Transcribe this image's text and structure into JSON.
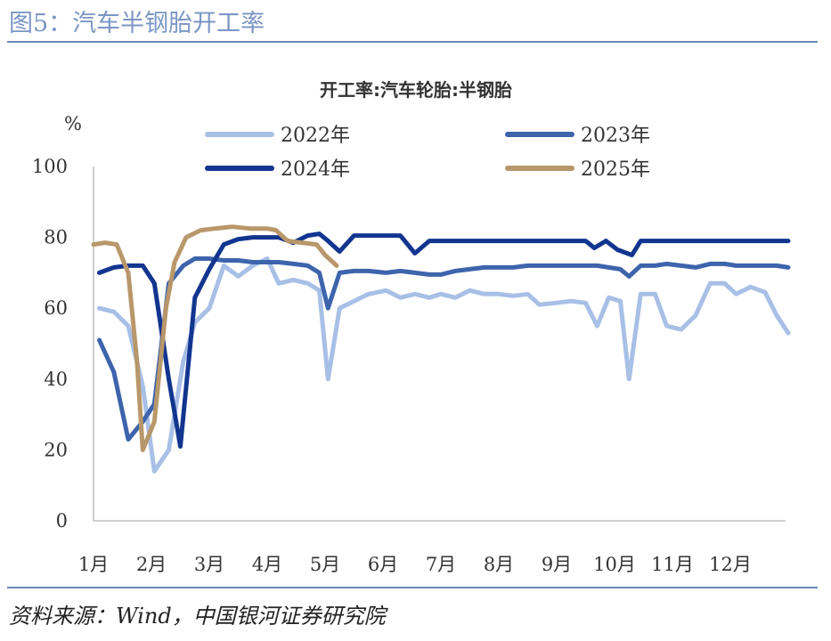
{
  "figure": {
    "title": "图5：汽车半钢胎开工率",
    "source": "资料来源：Wind，中国银河证券研究院"
  },
  "chart_data": {
    "type": "line",
    "title": "开工率:汽车轮胎:半钢胎",
    "ylabel": "%",
    "xlabel": "",
    "ylim": [
      0,
      100
    ],
    "yticks": [
      0,
      20,
      40,
      60,
      80,
      100
    ],
    "xlim": [
      1,
      12.85
    ],
    "xticks": [
      "1月",
      "2月",
      "3月",
      "4月",
      "5月",
      "6月",
      "7月",
      "8月",
      "9月",
      "10月",
      "11月",
      "12月"
    ],
    "grid": false,
    "legend_position": "top",
    "series": [
      {
        "name": "2022年",
        "color": "#a8bfe6",
        "points": [
          [
            1.1,
            60
          ],
          [
            1.35,
            59
          ],
          [
            1.6,
            55
          ],
          [
            1.85,
            38
          ],
          [
            2.05,
            14
          ],
          [
            2.3,
            20
          ],
          [
            2.55,
            45
          ],
          [
            2.75,
            56
          ],
          [
            3.0,
            60
          ],
          [
            3.25,
            72
          ],
          [
            3.5,
            69
          ],
          [
            3.75,
            72
          ],
          [
            4.0,
            74
          ],
          [
            4.2,
            67
          ],
          [
            4.45,
            68
          ],
          [
            4.7,
            67
          ],
          [
            4.9,
            65
          ],
          [
            5.05,
            40
          ],
          [
            5.25,
            60
          ],
          [
            5.5,
            62
          ],
          [
            5.75,
            64
          ],
          [
            6.05,
            65
          ],
          [
            6.3,
            63
          ],
          [
            6.55,
            64
          ],
          [
            6.8,
            63
          ],
          [
            7.0,
            64
          ],
          [
            7.25,
            63
          ],
          [
            7.5,
            65
          ],
          [
            7.75,
            64
          ],
          [
            8.0,
            64
          ],
          [
            8.25,
            63.5
          ],
          [
            8.5,
            64
          ],
          [
            8.7,
            61
          ],
          [
            9.0,
            61.5
          ],
          [
            9.25,
            62
          ],
          [
            9.5,
            61.5
          ],
          [
            9.7,
            55
          ],
          [
            9.9,
            63
          ],
          [
            10.1,
            62
          ],
          [
            10.25,
            40
          ],
          [
            10.45,
            64
          ],
          [
            10.7,
            64
          ],
          [
            10.9,
            55
          ],
          [
            11.15,
            54
          ],
          [
            11.4,
            58
          ],
          [
            11.65,
            67
          ],
          [
            11.9,
            67
          ],
          [
            12.1,
            64
          ],
          [
            12.35,
            66
          ],
          [
            12.6,
            64.5
          ],
          [
            12.8,
            58
          ],
          [
            13.0,
            53
          ]
        ]
      },
      {
        "name": "2023年",
        "color": "#3d64ac",
        "points": [
          [
            1.1,
            51
          ],
          [
            1.35,
            42
          ],
          [
            1.6,
            23
          ],
          [
            1.85,
            28
          ],
          [
            2.05,
            33
          ],
          [
            2.3,
            67
          ],
          [
            2.55,
            72
          ],
          [
            2.75,
            74
          ],
          [
            3.0,
            74
          ],
          [
            3.25,
            73.5
          ],
          [
            3.5,
            73.5
          ],
          [
            3.75,
            73
          ],
          [
            4.0,
            73
          ],
          [
            4.2,
            73
          ],
          [
            4.45,
            72.5
          ],
          [
            4.7,
            72
          ],
          [
            4.9,
            70
          ],
          [
            5.05,
            60
          ],
          [
            5.25,
            70
          ],
          [
            5.5,
            70.5
          ],
          [
            5.75,
            70.5
          ],
          [
            6.05,
            70
          ],
          [
            6.3,
            70.5
          ],
          [
            6.55,
            70
          ],
          [
            6.8,
            69.5
          ],
          [
            7.0,
            69.5
          ],
          [
            7.25,
            70.5
          ],
          [
            7.5,
            71
          ],
          [
            7.75,
            71.5
          ],
          [
            8.0,
            71.5
          ],
          [
            8.25,
            71.5
          ],
          [
            8.5,
            72
          ],
          [
            8.7,
            72
          ],
          [
            9.0,
            72
          ],
          [
            9.25,
            72
          ],
          [
            9.5,
            72
          ],
          [
            9.7,
            72
          ],
          [
            9.9,
            71.5
          ],
          [
            10.1,
            71
          ],
          [
            10.25,
            69
          ],
          [
            10.45,
            72
          ],
          [
            10.7,
            72
          ],
          [
            10.9,
            72.5
          ],
          [
            11.15,
            72
          ],
          [
            11.4,
            71.5
          ],
          [
            11.65,
            72.5
          ],
          [
            11.9,
            72.5
          ],
          [
            12.1,
            72
          ],
          [
            12.35,
            72
          ],
          [
            12.6,
            72
          ],
          [
            12.8,
            72
          ],
          [
            13.0,
            71.5
          ]
        ]
      },
      {
        "name": "2024年",
        "color": "#12358f",
        "points": [
          [
            1.1,
            70
          ],
          [
            1.35,
            71.5
          ],
          [
            1.6,
            72
          ],
          [
            1.85,
            72
          ],
          [
            2.05,
            67
          ],
          [
            2.3,
            40
          ],
          [
            2.5,
            21
          ],
          [
            2.75,
            63
          ],
          [
            3.0,
            71
          ],
          [
            3.25,
            78
          ],
          [
            3.5,
            79.5
          ],
          [
            3.75,
            80
          ],
          [
            4.0,
            80
          ],
          [
            4.2,
            80
          ],
          [
            4.45,
            78.5
          ],
          [
            4.7,
            80.5
          ],
          [
            4.9,
            81
          ],
          [
            5.05,
            79
          ],
          [
            5.25,
            76
          ],
          [
            5.5,
            80.5
          ],
          [
            5.75,
            80.5
          ],
          [
            6.05,
            80.5
          ],
          [
            6.3,
            80.5
          ],
          [
            6.55,
            75.5
          ],
          [
            6.8,
            79
          ],
          [
            7.0,
            79
          ],
          [
            7.25,
            79
          ],
          [
            7.5,
            79
          ],
          [
            7.75,
            79
          ],
          [
            8.0,
            79
          ],
          [
            8.25,
            79
          ],
          [
            8.5,
            79
          ],
          [
            8.7,
            79
          ],
          [
            9.0,
            79
          ],
          [
            9.25,
            79
          ],
          [
            9.5,
            79
          ],
          [
            9.65,
            77
          ],
          [
            9.85,
            79
          ],
          [
            10.05,
            76.5
          ],
          [
            10.3,
            75
          ],
          [
            10.45,
            79
          ],
          [
            10.7,
            79
          ],
          [
            10.9,
            79
          ],
          [
            11.15,
            79
          ],
          [
            11.4,
            79
          ],
          [
            11.65,
            79
          ],
          [
            11.9,
            79
          ],
          [
            12.1,
            79
          ],
          [
            12.35,
            79
          ],
          [
            12.6,
            79
          ],
          [
            12.8,
            79
          ],
          [
            13.0,
            79
          ]
        ]
      },
      {
        "name": "2025年",
        "color": "#b8976a",
        "points": [
          [
            1.0,
            78
          ],
          [
            1.2,
            78.5
          ],
          [
            1.4,
            78
          ],
          [
            1.6,
            70
          ],
          [
            1.75,
            45
          ],
          [
            1.85,
            20
          ],
          [
            2.05,
            28
          ],
          [
            2.25,
            60
          ],
          [
            2.4,
            73
          ],
          [
            2.6,
            80
          ],
          [
            2.85,
            82
          ],
          [
            3.1,
            82.5
          ],
          [
            3.4,
            83
          ],
          [
            3.7,
            82.5
          ],
          [
            4.0,
            82.5
          ],
          [
            4.15,
            82
          ],
          [
            4.35,
            79
          ],
          [
            4.6,
            78.5
          ],
          [
            4.85,
            78
          ],
          [
            5.0,
            75
          ],
          [
            5.2,
            72
          ]
        ]
      }
    ]
  }
}
